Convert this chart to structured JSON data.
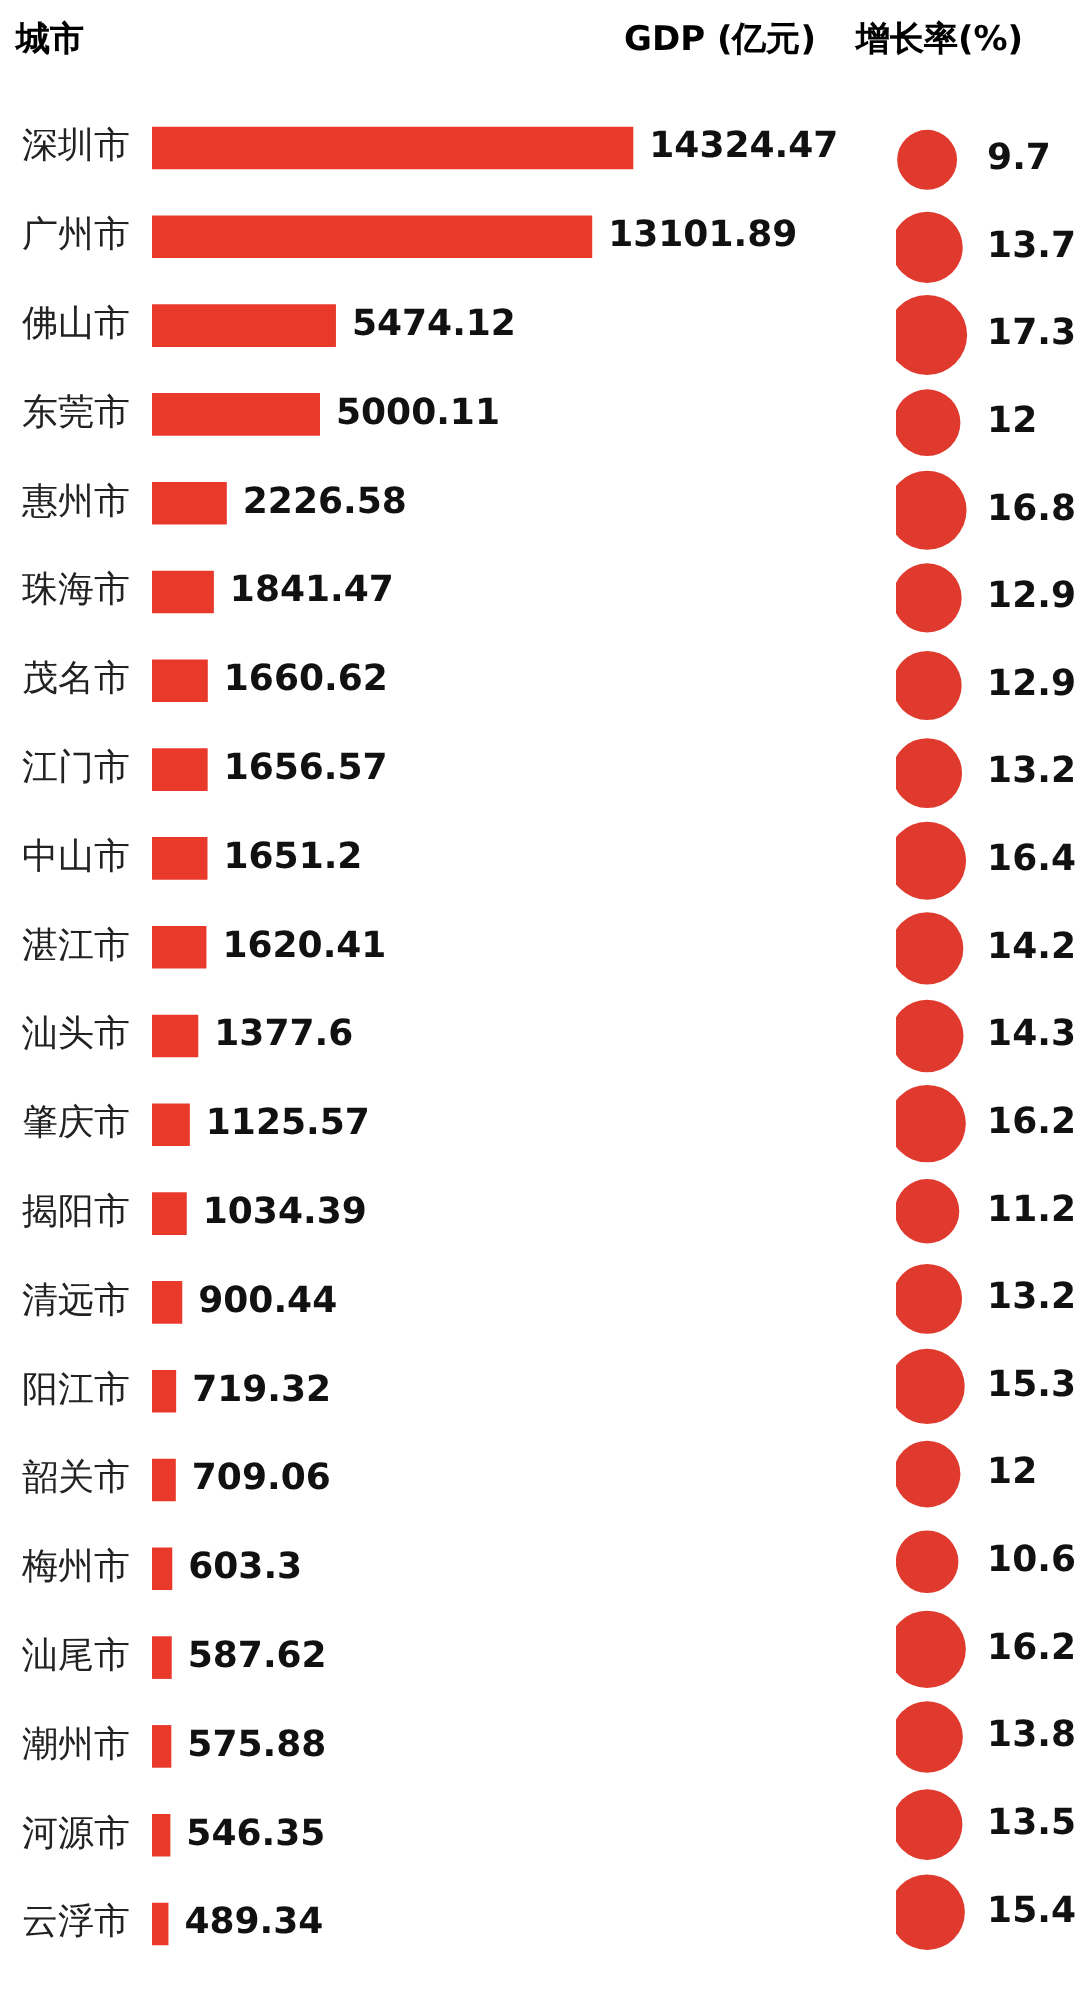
{
  "chart_data": [
    {
      "type": "bar",
      "orientation": "horizontal",
      "ylabel": "城市",
      "xlabel": "GDP (亿元)",
      "data_labels": true,
      "color": "#e8392b",
      "categories": [
        "深圳市",
        "广州市",
        "佛山市",
        "东莞市",
        "惠州市",
        "珠海市",
        "茂名市",
        "江门市",
        "中山市",
        "湛江市",
        "汕头市",
        "肇庆市",
        "揭阳市",
        "清远市",
        "阳江市",
        "韶关市",
        "梅州市",
        "汕尾市",
        "潮州市",
        "河源市",
        "云浮市"
      ],
      "values": [
        14324.47,
        13101.89,
        5474.12,
        5000.11,
        2226.58,
        1841.47,
        1660.62,
        1656.57,
        1651.2,
        1620.41,
        1377.6,
        1125.57,
        1034.39,
        900.44,
        719.32,
        709.06,
        603.3,
        587.62,
        575.88,
        546.35,
        489.34
      ]
    },
    {
      "type": "other",
      "title": "增长率(%)",
      "data_labels": true,
      "color": "#e03a2e",
      "values": [
        9.7,
        13.7,
        17.3,
        12,
        16.8,
        12.9,
        12.9,
        13.2,
        16.4,
        14.2,
        14.3,
        16.2,
        11.2,
        13.2,
        15.3,
        12,
        10.6,
        16.2,
        13.8,
        13.5,
        15.4
      ]
    }
  ]
}
